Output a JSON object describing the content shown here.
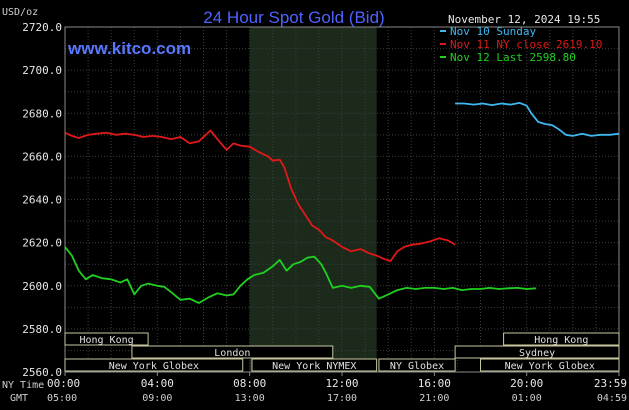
{
  "chart_data": {
    "type": "line",
    "title": "24 Hour Spot Gold (Bid)",
    "site": "www.kitco.com",
    "timestamp": "November 12, 2024 19:55",
    "y_unit": "USD/oz",
    "ylim": [
      2560,
      2720
    ],
    "y_ticks": [
      {
        "value": 2720,
        "label": "2720.0"
      },
      {
        "value": 2700,
        "label": "2700.0"
      },
      {
        "value": 2680,
        "label": "2680.0"
      },
      {
        "value": 2660,
        "label": "2660.0"
      },
      {
        "value": 2640,
        "label": "2640.0"
      },
      {
        "value": 2620,
        "label": "2620.0"
      },
      {
        "value": 2600,
        "label": "2600.0"
      },
      {
        "value": 2580,
        "label": "2580.0"
      },
      {
        "value": 2560,
        "label": "2560.0"
      }
    ],
    "xlim": [
      0,
      24
    ],
    "x_row_labels": {
      "ny": "NY Time",
      "gmt": "GMT"
    },
    "x_ticks": [
      {
        "hour": 0,
        "ny": "00:00",
        "gmt": "05:00"
      },
      {
        "hour": 4,
        "ny": "04:00",
        "gmt": "09:00"
      },
      {
        "hour": 8,
        "ny": "08:00",
        "gmt": "13:00"
      },
      {
        "hour": 12,
        "ny": "12:00",
        "gmt": "17:00"
      },
      {
        "hour": 16,
        "ny": "16:00",
        "gmt": "21:00"
      },
      {
        "hour": 20,
        "ny": "20:00",
        "gmt": "01:00"
      },
      {
        "hour": 24,
        "ny": "23:59",
        "gmt": "04:59"
      }
    ],
    "highlight_range": [
      8,
      13.5
    ],
    "legend_position": "top-right",
    "grid": true,
    "sessions": [
      {
        "label": "Hong Kong",
        "start": 0,
        "end": 3.6,
        "row": 0
      },
      {
        "label": "London",
        "start": 2.9,
        "end": 11.6,
        "row": 1
      },
      {
        "label": "New York Globex",
        "start": 0,
        "end": 7.7,
        "row": 2
      },
      {
        "label": "New York NYMEX",
        "start": 8.1,
        "end": 13.5,
        "row": 2
      },
      {
        "label": "NY Globex",
        "start": 13.6,
        "end": 16.9,
        "row": 2
      },
      {
        "label": "Hong Kong",
        "start": 19.0,
        "end": 24,
        "row": 0
      },
      {
        "label": "Sydney",
        "start": 16.9,
        "end": 24,
        "row": 1
      },
      {
        "label": "New York Globex",
        "start": 18.0,
        "end": 24,
        "row": 2
      }
    ],
    "series": [
      {
        "name": "Nov 10 Sunday",
        "color": "#3fb8f0",
        "points": [
          [
            16.9,
            2684.5
          ],
          [
            17.3,
            2684.5
          ],
          [
            17.7,
            2684.0
          ],
          [
            18.1,
            2684.5
          ],
          [
            18.5,
            2683.8
          ],
          [
            18.9,
            2684.5
          ],
          [
            19.3,
            2684.0
          ],
          [
            19.7,
            2684.8
          ],
          [
            20.0,
            2683.5
          ],
          [
            20.2,
            2680.0
          ],
          [
            20.5,
            2676.0
          ],
          [
            20.8,
            2675.0
          ],
          [
            21.1,
            2674.5
          ],
          [
            21.4,
            2672.5
          ],
          [
            21.7,
            2670.0
          ],
          [
            22.0,
            2669.5
          ],
          [
            22.4,
            2670.5
          ],
          [
            22.8,
            2669.5
          ],
          [
            23.2,
            2670.0
          ],
          [
            23.6,
            2670.0
          ],
          [
            24.0,
            2670.5
          ]
        ]
      },
      {
        "name": "Nov 11 NY close 2619.10",
        "color": "#e01818",
        "points": [
          [
            0.0,
            2671.0
          ],
          [
            0.3,
            2669.5
          ],
          [
            0.6,
            2668.5
          ],
          [
            1.0,
            2670.0
          ],
          [
            1.4,
            2670.5
          ],
          [
            1.8,
            2671.0
          ],
          [
            2.2,
            2670.0
          ],
          [
            2.6,
            2670.5
          ],
          [
            3.0,
            2670.0
          ],
          [
            3.4,
            2669.0
          ],
          [
            3.8,
            2669.5
          ],
          [
            4.2,
            2669.0
          ],
          [
            4.6,
            2668.0
          ],
          [
            5.0,
            2669.0
          ],
          [
            5.4,
            2666.0
          ],
          [
            5.8,
            2667.0
          ],
          [
            6.1,
            2670.0
          ],
          [
            6.3,
            2672.0
          ],
          [
            6.6,
            2668.0
          ],
          [
            7.0,
            2663.0
          ],
          [
            7.3,
            2666.0
          ],
          [
            7.6,
            2665.0
          ],
          [
            8.0,
            2664.5
          ],
          [
            8.4,
            2662.0
          ],
          [
            8.8,
            2660.0
          ],
          [
            9.0,
            2658.0
          ],
          [
            9.3,
            2658.5
          ],
          [
            9.5,
            2655.0
          ],
          [
            9.8,
            2645.0
          ],
          [
            10.1,
            2638.0
          ],
          [
            10.4,
            2633.0
          ],
          [
            10.7,
            2628.0
          ],
          [
            11.0,
            2626.0
          ],
          [
            11.3,
            2622.5
          ],
          [
            11.6,
            2621.0
          ],
          [
            12.0,
            2618.0
          ],
          [
            12.4,
            2616.0
          ],
          [
            12.8,
            2617.0
          ],
          [
            13.2,
            2615.0
          ],
          [
            13.5,
            2614.0
          ],
          [
            13.8,
            2612.5
          ],
          [
            14.1,
            2611.5
          ],
          [
            14.4,
            2616.0
          ],
          [
            14.7,
            2618.0
          ],
          [
            15.0,
            2619.0
          ],
          [
            15.4,
            2619.5
          ],
          [
            15.8,
            2620.5
          ],
          [
            16.2,
            2622.0
          ],
          [
            16.6,
            2621.0
          ],
          [
            16.9,
            2619.1
          ]
        ]
      },
      {
        "name": "Nov 12 Last 2598.80",
        "color": "#20d020",
        "points": [
          [
            0.0,
            2618.0
          ],
          [
            0.3,
            2614.0
          ],
          [
            0.6,
            2607.0
          ],
          [
            0.9,
            2603.0
          ],
          [
            1.2,
            2605.0
          ],
          [
            1.6,
            2603.5
          ],
          [
            2.0,
            2603.0
          ],
          [
            2.4,
            2601.5
          ],
          [
            2.7,
            2603.0
          ],
          [
            3.0,
            2596.0
          ],
          [
            3.3,
            2600.0
          ],
          [
            3.6,
            2601.0
          ],
          [
            4.0,
            2600.0
          ],
          [
            4.3,
            2599.5
          ],
          [
            4.6,
            2597.0
          ],
          [
            5.0,
            2593.5
          ],
          [
            5.4,
            2594.0
          ],
          [
            5.8,
            2592.0
          ],
          [
            6.2,
            2594.5
          ],
          [
            6.6,
            2596.5
          ],
          [
            7.0,
            2595.5
          ],
          [
            7.3,
            2596.0
          ],
          [
            7.6,
            2600.0
          ],
          [
            7.9,
            2603.0
          ],
          [
            8.2,
            2605.0
          ],
          [
            8.6,
            2606.0
          ],
          [
            9.0,
            2609.0
          ],
          [
            9.3,
            2612.0
          ],
          [
            9.6,
            2607.0
          ],
          [
            9.9,
            2610.0
          ],
          [
            10.2,
            2611.0
          ],
          [
            10.5,
            2613.0
          ],
          [
            10.8,
            2613.5
          ],
          [
            11.1,
            2610.0
          ],
          [
            11.3,
            2606.0
          ],
          [
            11.6,
            2599.0
          ],
          [
            12.0,
            2600.0
          ],
          [
            12.4,
            2599.0
          ],
          [
            12.8,
            2600.0
          ],
          [
            13.2,
            2599.5
          ],
          [
            13.6,
            2594.0
          ],
          [
            14.0,
            2596.0
          ],
          [
            14.4,
            2598.0
          ],
          [
            14.8,
            2599.0
          ],
          [
            15.2,
            2598.5
          ],
          [
            15.6,
            2599.0
          ],
          [
            16.0,
            2599.0
          ],
          [
            16.4,
            2598.5
          ],
          [
            16.8,
            2599.0
          ],
          [
            17.2,
            2598.0
          ],
          [
            17.6,
            2598.5
          ],
          [
            18.0,
            2598.5
          ],
          [
            18.4,
            2599.0
          ],
          [
            18.8,
            2598.5
          ],
          [
            19.2,
            2598.8
          ],
          [
            19.6,
            2599.0
          ],
          [
            20.0,
            2598.5
          ],
          [
            20.4,
            2598.8
          ]
        ]
      }
    ]
  }
}
